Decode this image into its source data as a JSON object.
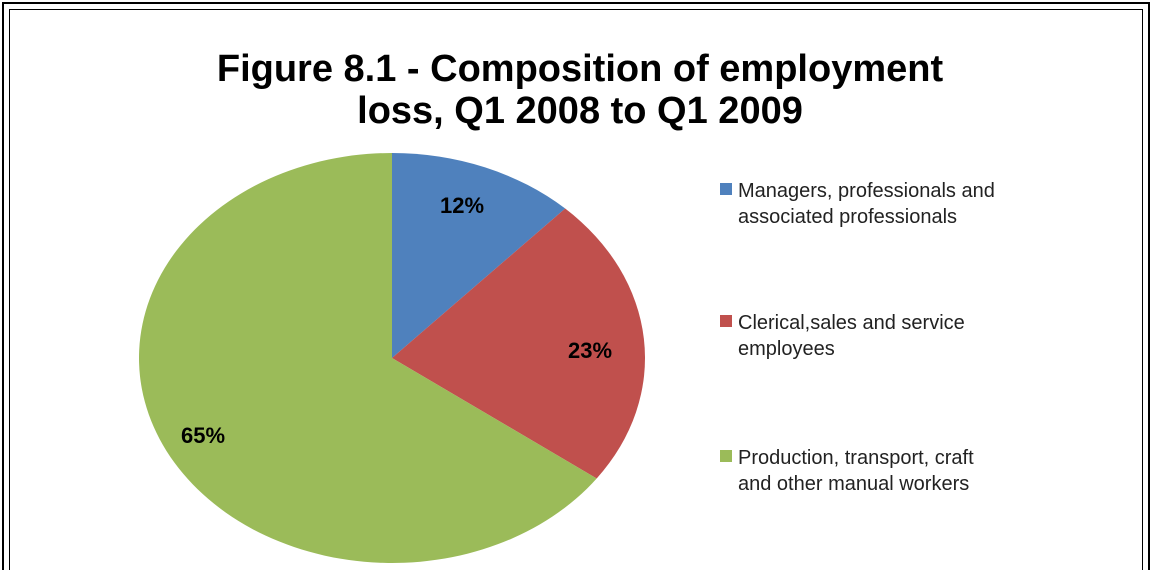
{
  "chart_data": {
    "type": "pie",
    "title": "Figure 8.1 - Composition of employment loss, Q1 2008 to Q1 2009",
    "categories": [
      "Managers, professionals and associated professionals",
      "Clerical,sales and service employees",
      "Production, transport, craft and other manual workers"
    ],
    "values": [
      12,
      23,
      65
    ],
    "value_labels": [
      "12%",
      "23%",
      "65%"
    ],
    "colors": [
      "#4f81bd",
      "#c0504d",
      "#9bbb59"
    ],
    "legend": "right"
  }
}
